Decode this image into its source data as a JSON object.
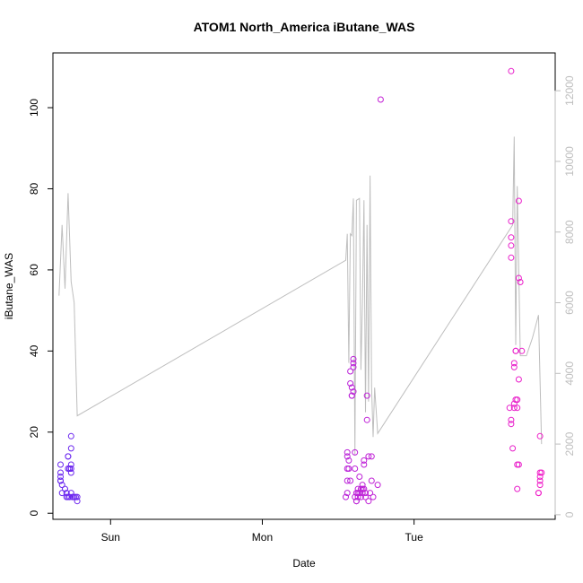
{
  "chart_data": {
    "type": "scatter",
    "title": "ATOM1 North_America iButane_WAS",
    "xlabel": "Date",
    "ylabel": "iButane_WAS",
    "x_ticks": [
      "Sun",
      "Mon",
      "Tue"
    ],
    "x_tick_positions_days": [
      1,
      2,
      3
    ],
    "xlim_days": [
      0.62,
      3.93
    ],
    "y_ticks": [
      0,
      20,
      40,
      60,
      80,
      100
    ],
    "ylim": [
      -1.5,
      113.5
    ],
    "y2_ticks": [
      0,
      2000,
      4000,
      6000,
      8000,
      10000,
      12000
    ],
    "ylim2": [
      -130,
      13070
    ],
    "grid": false,
    "legend": "none",
    "colors": {
      "line": "#bebebe",
      "points_start": "#6a28f0",
      "points_end": "#f01ec8",
      "axis": "#000000"
    },
    "points": [
      [
        0.67,
        12
      ],
      [
        0.67,
        10
      ],
      [
        0.67,
        9
      ],
      [
        0.67,
        8
      ],
      [
        0.67,
        8
      ],
      [
        0.68,
        7
      ],
      [
        0.68,
        5
      ],
      [
        0.7,
        6
      ],
      [
        0.71,
        5
      ],
      [
        0.71,
        4
      ],
      [
        0.72,
        4
      ],
      [
        0.72,
        11
      ],
      [
        0.72,
        14
      ],
      [
        0.72,
        14
      ],
      [
        0.73,
        11
      ],
      [
        0.73,
        11
      ],
      [
        0.74,
        12
      ],
      [
        0.74,
        10
      ],
      [
        0.74,
        11
      ],
      [
        0.74,
        16
      ],
      [
        0.74,
        19
      ],
      [
        0.74,
        5
      ],
      [
        0.73,
        4
      ],
      [
        0.75,
        4
      ],
      [
        0.75,
        4
      ],
      [
        0.76,
        4
      ],
      [
        0.77,
        4
      ],
      [
        0.78,
        3
      ],
      [
        0.78,
        4
      ],
      [
        2.55,
        4
      ],
      [
        2.56,
        5
      ],
      [
        2.56,
        8
      ],
      [
        2.56,
        11
      ],
      [
        2.56,
        14
      ],
      [
        2.56,
        15
      ],
      [
        2.57,
        13
      ],
      [
        2.57,
        11
      ],
      [
        2.58,
        8
      ],
      [
        2.58,
        32
      ],
      [
        2.58,
        35
      ],
      [
        2.59,
        31
      ],
      [
        2.59,
        29
      ],
      [
        2.59,
        29
      ],
      [
        2.6,
        37
      ],
      [
        2.6,
        38
      ],
      [
        2.6,
        36
      ],
      [
        2.6,
        30
      ],
      [
        2.61,
        11
      ],
      [
        2.61,
        15
      ],
      [
        2.61,
        4
      ],
      [
        2.62,
        3
      ],
      [
        2.62,
        5
      ],
      [
        2.62,
        3
      ],
      [
        2.63,
        4
      ],
      [
        2.63,
        5
      ],
      [
        2.63,
        6
      ],
      [
        2.64,
        9
      ],
      [
        2.64,
        5
      ],
      [
        2.65,
        4
      ],
      [
        2.65,
        6
      ],
      [
        2.66,
        5
      ],
      [
        2.66,
        6
      ],
      [
        2.66,
        7
      ],
      [
        2.67,
        12
      ],
      [
        2.67,
        13
      ],
      [
        2.67,
        6
      ],
      [
        2.68,
        4
      ],
      [
        2.68,
        5
      ],
      [
        2.69,
        29
      ],
      [
        2.69,
        23
      ],
      [
        2.7,
        14
      ],
      [
        2.7,
        3
      ],
      [
        2.71,
        5
      ],
      [
        2.72,
        14
      ],
      [
        2.72,
        8
      ],
      [
        2.73,
        4
      ],
      [
        2.76,
        7
      ],
      [
        2.78,
        102
      ],
      [
        3.64,
        109
      ],
      [
        3.64,
        72
      ],
      [
        3.64,
        68
      ],
      [
        3.64,
        66
      ],
      [
        3.64,
        63
      ],
      [
        3.63,
        26
      ],
      [
        3.64,
        23
      ],
      [
        3.64,
        22
      ],
      [
        3.65,
        16
      ],
      [
        3.66,
        26
      ],
      [
        3.66,
        27
      ],
      [
        3.66,
        37
      ],
      [
        3.66,
        36
      ],
      [
        3.67,
        40
      ],
      [
        3.67,
        40
      ],
      [
        3.67,
        28
      ],
      [
        3.68,
        28
      ],
      [
        3.68,
        26
      ],
      [
        3.68,
        12
      ],
      [
        3.68,
        6
      ],
      [
        3.69,
        12
      ],
      [
        3.69,
        33
      ],
      [
        3.69,
        58
      ],
      [
        3.69,
        77
      ],
      [
        3.7,
        57
      ],
      [
        3.71,
        40
      ],
      [
        3.83,
        19
      ],
      [
        3.82,
        5
      ],
      [
        3.82,
        5
      ],
      [
        3.83,
        7
      ],
      [
        3.83,
        8
      ],
      [
        3.83,
        9
      ],
      [
        3.83,
        10
      ],
      [
        3.84,
        10
      ]
    ],
    "line_series": [
      [
        0.66,
        6200
      ],
      [
        0.68,
        8200
      ],
      [
        0.7,
        6400
      ],
      [
        0.72,
        9100
      ],
      [
        0.74,
        6600
      ],
      [
        0.76,
        6000
      ],
      [
        0.78,
        2800
      ],
      [
        2.55,
        7200
      ],
      [
        2.56,
        7950
      ],
      [
        2.57,
        4300
      ],
      [
        2.58,
        7950
      ],
      [
        2.59,
        7900
      ],
      [
        2.6,
        8950
      ],
      [
        2.61,
        1700
      ],
      [
        2.62,
        8900
      ],
      [
        2.64,
        8950
      ],
      [
        2.65,
        4100
      ],
      [
        2.66,
        6000
      ],
      [
        2.67,
        8900
      ],
      [
        2.68,
        2900
      ],
      [
        2.69,
        8200
      ],
      [
        2.7,
        3200
      ],
      [
        2.71,
        9600
      ],
      [
        2.72,
        3600
      ],
      [
        2.73,
        2200
      ],
      [
        2.74,
        3600
      ],
      [
        2.76,
        2300
      ],
      [
        3.65,
        8200
      ],
      [
        3.66,
        10700
      ],
      [
        3.67,
        4800
      ],
      [
        3.68,
        9300
      ],
      [
        3.7,
        4500
      ],
      [
        3.74,
        4500
      ],
      [
        3.78,
        5000
      ],
      [
        3.82,
        5650
      ],
      [
        3.84,
        2000
      ]
    ]
  }
}
